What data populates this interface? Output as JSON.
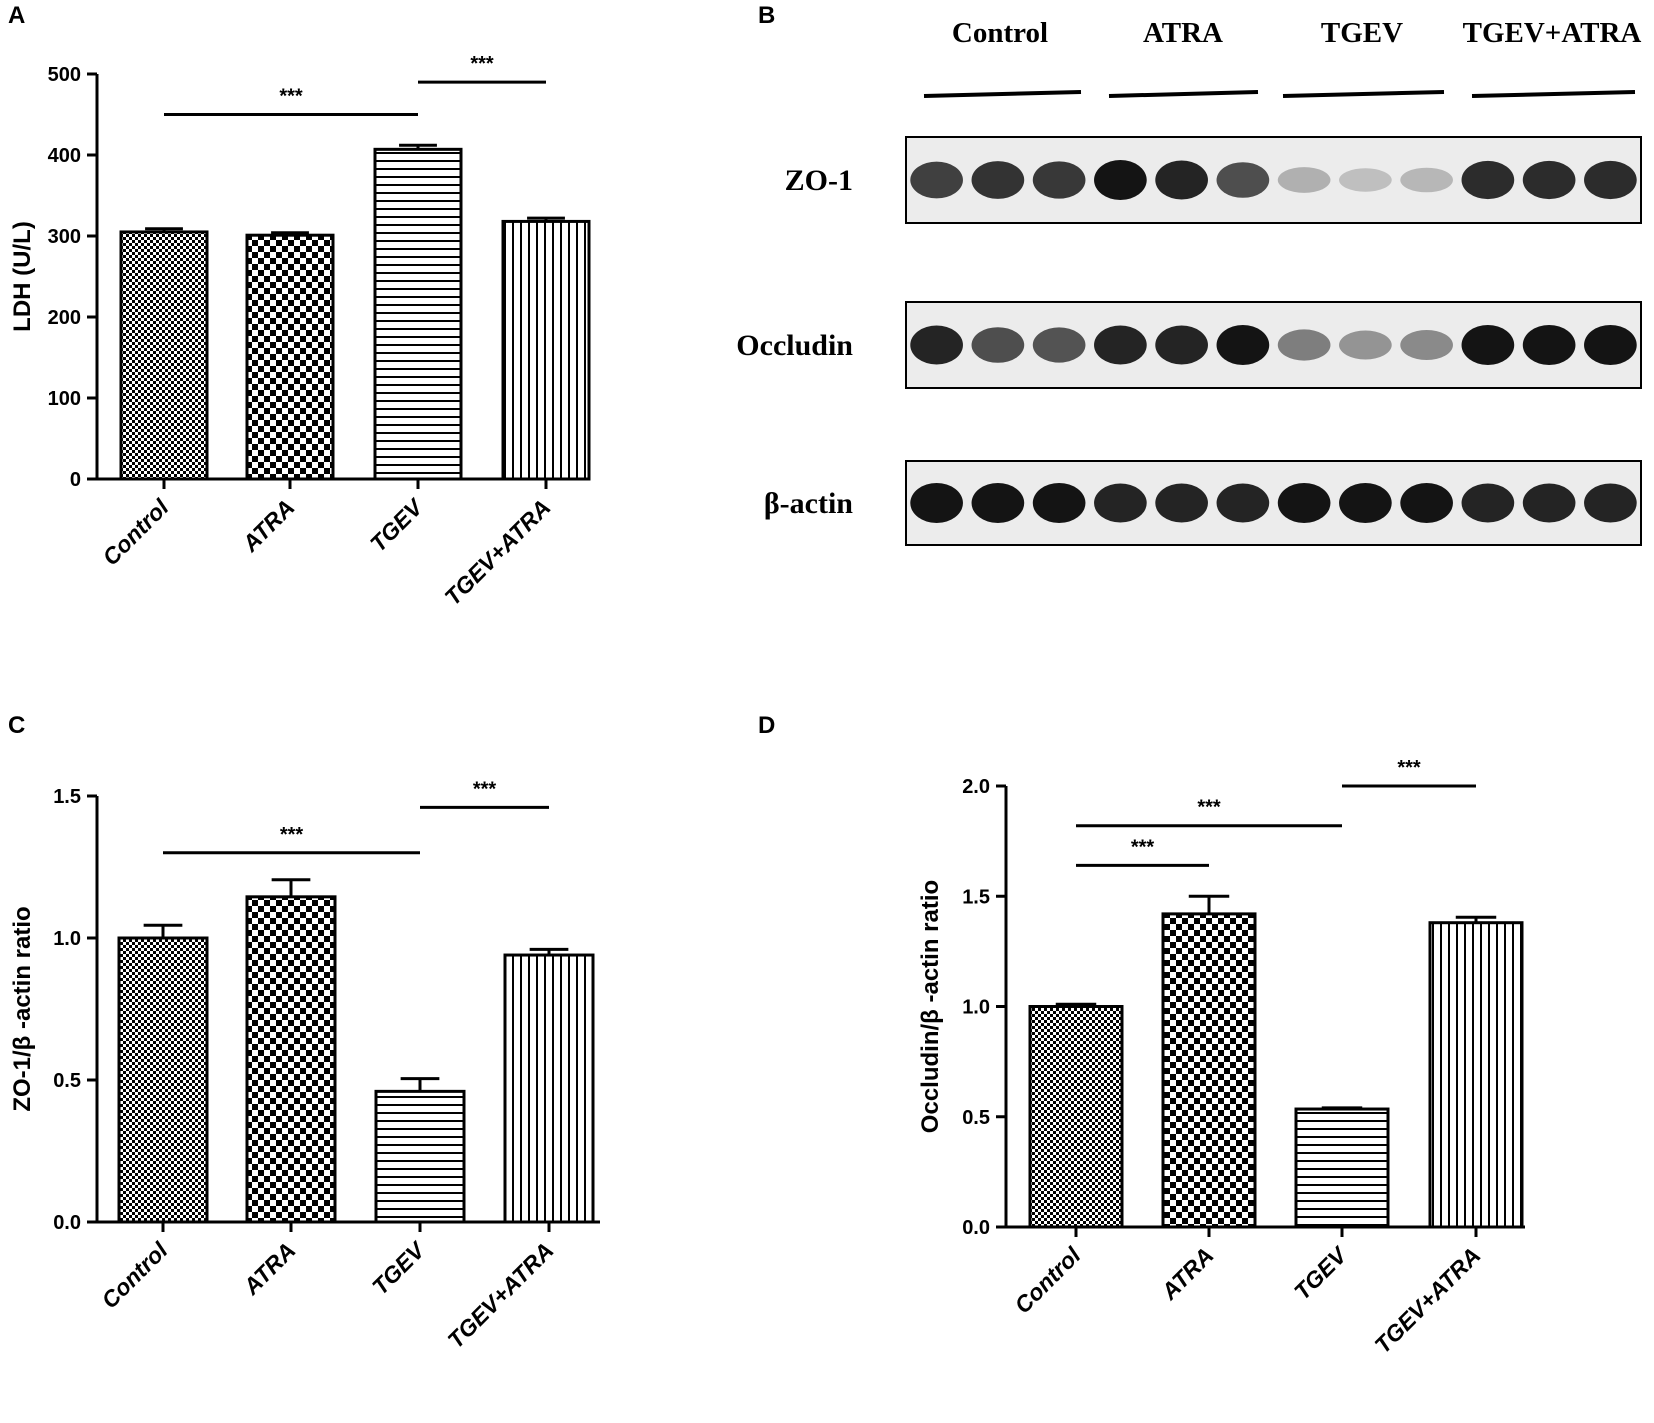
{
  "panels": {
    "a": {
      "letter": "A"
    },
    "b": {
      "letter": "B"
    },
    "c": {
      "letter": "C"
    },
    "d": {
      "letter": "D"
    }
  },
  "blot": {
    "groups": [
      "Control",
      "ATRA",
      "TGEV",
      "TGEV+ATRA"
    ],
    "rows": [
      {
        "label": "ZO-1",
        "intensities": [
          0.85,
          0.9,
          0.88,
          1.0,
          0.95,
          0.8,
          0.35,
          0.25,
          0.3,
          0.92,
          0.92,
          0.92
        ]
      },
      {
        "label": "Occludin",
        "intensities": [
          0.95,
          0.8,
          0.78,
          0.95,
          0.95,
          1.0,
          0.6,
          0.5,
          0.55,
          1.0,
          1.0,
          1.0
        ]
      },
      {
        "label": "β-actin",
        "intensities": [
          1.0,
          1.0,
          1.0,
          0.95,
          0.95,
          0.95,
          1.0,
          1.0,
          1.0,
          0.95,
          0.95,
          0.95
        ]
      }
    ]
  },
  "chart_data": [
    {
      "panel": "A",
      "type": "bar",
      "categories": [
        "Control",
        "ATRA",
        "TGEV",
        "TGEV+ATRA"
      ],
      "values": [
        305,
        301,
        407,
        318
      ],
      "errors": [
        4,
        3,
        5,
        4
      ],
      "patterns": [
        "fine-checker",
        "checker",
        "horizontal",
        "vertical"
      ],
      "ylabel": "LDH (U/L)",
      "ylim": [
        0,
        500
      ],
      "yticks": [
        0,
        100,
        200,
        300,
        400,
        500
      ],
      "ytick_labels": [
        "0",
        "100",
        "200",
        "300",
        "400",
        "500"
      ],
      "significance": [
        {
          "from": 0,
          "to": 2,
          "label": "***",
          "y": 450
        },
        {
          "from": 2,
          "to": 3,
          "label": "***",
          "y": 490
        }
      ]
    },
    {
      "panel": "C",
      "type": "bar",
      "categories": [
        "Control",
        "ATRA",
        "TGEV",
        "TGEV+ATRA"
      ],
      "values": [
        1.0,
        1.145,
        0.46,
        0.94
      ],
      "errors": [
        0.045,
        0.06,
        0.045,
        0.02
      ],
      "patterns": [
        "fine-checker",
        "checker",
        "horizontal",
        "vertical"
      ],
      "ylabel": "ZO-1/β -actin ratio",
      "ylim": [
        0,
        1.5
      ],
      "yticks": [
        0,
        0.5,
        1.0,
        1.5
      ],
      "ytick_labels": [
        "0.0",
        "0.5",
        "1.0",
        "1.5"
      ],
      "significance": [
        {
          "from": 0,
          "to": 2,
          "label": "***",
          "y": 1.3
        },
        {
          "from": 2,
          "to": 3,
          "label": "***",
          "y": 1.46
        }
      ]
    },
    {
      "panel": "D",
      "type": "bar",
      "categories": [
        "Control",
        "ATRA",
        "TGEV",
        "TGEV+ATRA"
      ],
      "values": [
        1.0,
        1.42,
        0.535,
        1.38
      ],
      "errors": [
        0.01,
        0.08,
        0.005,
        0.025
      ],
      "patterns": [
        "fine-checker",
        "checker",
        "horizontal",
        "vertical"
      ],
      "ylabel": "Occludin/β -actin ratio",
      "ylim": [
        0,
        2.0
      ],
      "yticks": [
        0,
        0.5,
        1.0,
        1.5,
        2.0
      ],
      "ytick_labels": [
        "0.0",
        "0.5",
        "1.0",
        "1.5",
        "2.0"
      ],
      "significance": [
        {
          "from": 0,
          "to": 1,
          "label": "***",
          "y": 1.64
        },
        {
          "from": 0,
          "to": 2,
          "label": "***",
          "y": 1.82
        },
        {
          "from": 2,
          "to": 3,
          "label": "***",
          "y": 2.0
        }
      ]
    }
  ]
}
